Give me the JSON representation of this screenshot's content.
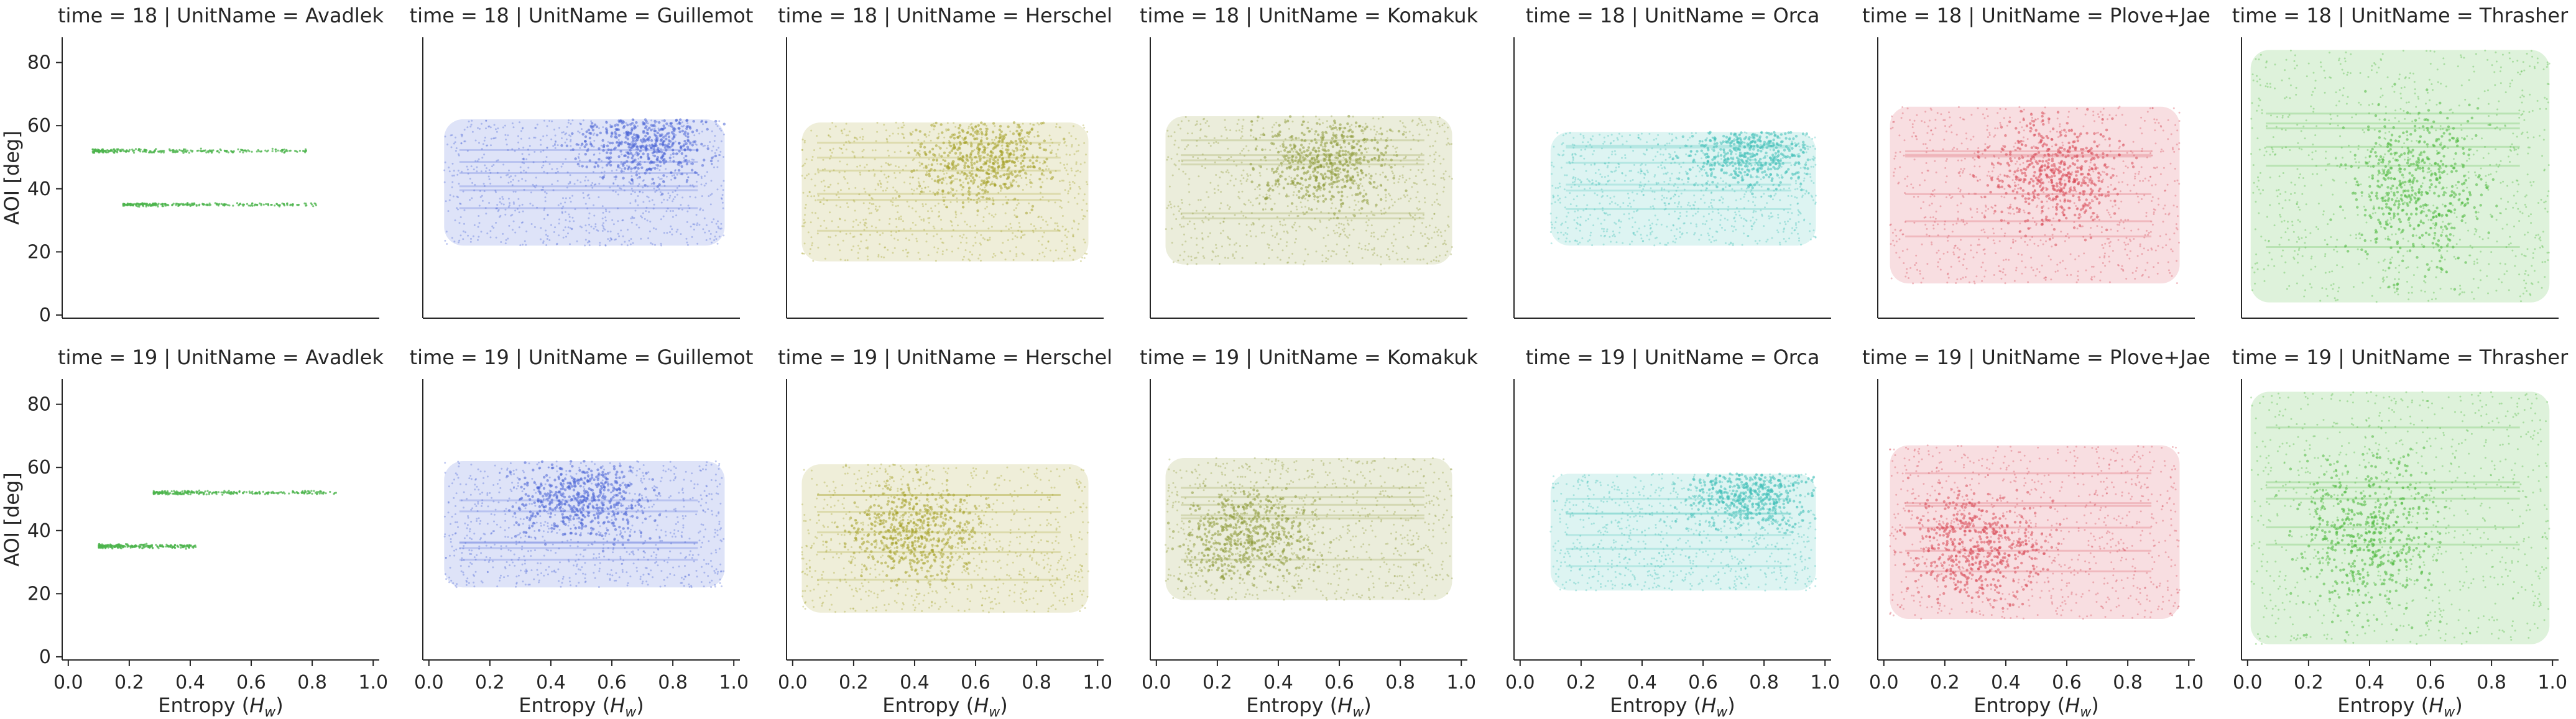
{
  "chart_data": {
    "type": "scatter",
    "facet_row_field": "time",
    "facet_col_field": "UnitName",
    "rows": [
      18,
      19
    ],
    "cols": [
      "Avadlek",
      "Guillemot",
      "Herschel",
      "Komakuk",
      "Orca",
      "Plove+Jae",
      "Thrasher"
    ],
    "xlabel": "Entropy (",
    "xlabel_sym": "H",
    "xlabel_sub": "w",
    "xlabel_close": ")",
    "ylabel": "AOI [deg]",
    "xlim": [
      -0.02,
      1.02
    ],
    "ylim": [
      -1,
      88
    ],
    "xticks": [
      "0.0",
      "0.2",
      "0.4",
      "0.6",
      "0.8",
      "1.0"
    ],
    "yticks": [
      "0",
      "20",
      "40",
      "60",
      "80"
    ],
    "grid": false,
    "colors": {
      "Avadlek": "#4cb44c",
      "Guillemot": "#4a64d6",
      "Herschel": "#a6a32a",
      "Komakuk": "#8e9a3a",
      "Orca": "#40c0b8",
      "Plove+Jae": "#d84a58",
      "Thrasher": "#4ab83a"
    },
    "panels": [
      {
        "time": 18,
        "unit": "Avadlek",
        "title": "time = 18 | UnitName = Avadlek",
        "bands": [
          {
            "y": 52,
            "x0": 0.08,
            "x1": 0.78,
            "sd": 0.6
          },
          {
            "y": 35,
            "x0": 0.18,
            "x1": 0.82,
            "sd": 0.5
          }
        ]
      },
      {
        "time": 18,
        "unit": "Guillemot",
        "title": "time = 18 | UnitName = Guillemot",
        "x_range": [
          0.05,
          0.97
        ],
        "y_range": [
          22,
          62
        ],
        "peak": [
          0.72,
          55
        ]
      },
      {
        "time": 18,
        "unit": "Herschel",
        "title": "time = 18 | UnitName = Herschel",
        "x_range": [
          0.03,
          0.97
        ],
        "y_range": [
          17,
          61
        ],
        "peak": [
          0.62,
          50
        ]
      },
      {
        "time": 18,
        "unit": "Komakuk",
        "title": "time = 18 | UnitName = Komakuk",
        "x_range": [
          0.03,
          0.97
        ],
        "y_range": [
          16,
          63
        ],
        "peak": [
          0.55,
          48
        ]
      },
      {
        "time": 18,
        "unit": "Orca",
        "title": "time = 18 | UnitName = Orca",
        "x_range": [
          0.1,
          0.97
        ],
        "y_range": [
          22,
          58
        ],
        "peak": [
          0.75,
          52
        ]
      },
      {
        "time": 18,
        "unit": "Plove+Jae",
        "title": "time = 18 | UnitName = Plove+Jae",
        "x_range": [
          0.02,
          0.97
        ],
        "y_range": [
          10,
          66
        ],
        "peak": [
          0.55,
          45
        ]
      },
      {
        "time": 18,
        "unit": "Thrasher",
        "title": "time = 18 | UnitName = Thrasher",
        "x_range": [
          0.01,
          0.99
        ],
        "y_range": [
          4,
          84
        ],
        "peak": [
          0.55,
          40
        ]
      },
      {
        "time": 19,
        "unit": "Avadlek",
        "title": "time = 19 | UnitName = Avadlek",
        "bands": [
          {
            "y": 52,
            "x0": 0.28,
            "x1": 0.88,
            "sd": 0.6
          },
          {
            "y": 35,
            "x0": 0.1,
            "x1": 0.42,
            "sd": 0.6
          }
        ]
      },
      {
        "time": 19,
        "unit": "Guillemot",
        "title": "time = 19 | UnitName = Guillemot",
        "x_range": [
          0.05,
          0.97
        ],
        "y_range": [
          22,
          62
        ],
        "peak": [
          0.5,
          50
        ]
      },
      {
        "time": 19,
        "unit": "Herschel",
        "title": "time = 19 | UnitName = Herschel",
        "x_range": [
          0.03,
          0.97
        ],
        "y_range": [
          14,
          61
        ],
        "peak": [
          0.4,
          40
        ]
      },
      {
        "time": 19,
        "unit": "Komakuk",
        "title": "time = 19 | UnitName = Komakuk",
        "x_range": [
          0.03,
          0.97
        ],
        "y_range": [
          18,
          63
        ],
        "peak": [
          0.3,
          38
        ]
      },
      {
        "time": 19,
        "unit": "Orca",
        "title": "time = 19 | UnitName = Orca",
        "x_range": [
          0.1,
          0.97
        ],
        "y_range": [
          21,
          58
        ],
        "peak": [
          0.75,
          52
        ]
      },
      {
        "time": 19,
        "unit": "Plove+Jae",
        "title": "time = 19 | UnitName = Plove+Jae",
        "x_range": [
          0.02,
          0.97
        ],
        "y_range": [
          12,
          67
        ],
        "peak": [
          0.3,
          35
        ]
      },
      {
        "time": 19,
        "unit": "Thrasher",
        "title": "time = 19 | UnitName = Thrasher",
        "x_range": [
          0.01,
          0.99
        ],
        "y_range": [
          4,
          84
        ],
        "peak": [
          0.4,
          38
        ]
      }
    ]
  }
}
